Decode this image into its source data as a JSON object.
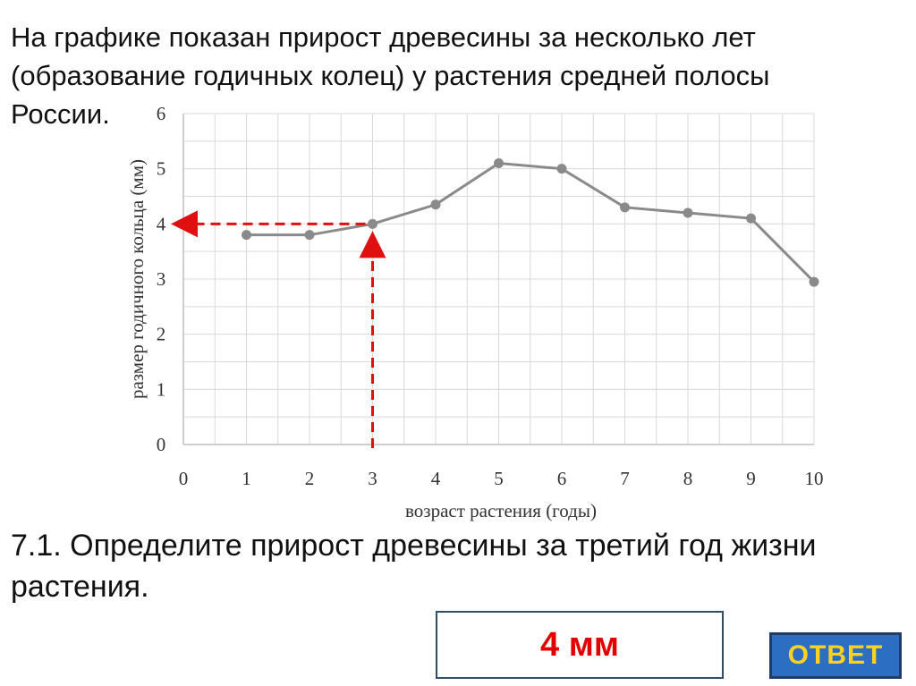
{
  "slide": {
    "intro_text": "На графике показан прирост древесины за несколько лет (образование годичных колец) у растения средней полосы России.",
    "question_text": "7.1. Определите прирост древесины за третий год жизни растения.",
    "answer_text": "4 мм",
    "answer_button_label": "ОТВЕТ"
  },
  "colors": {
    "line": "#8a8a8a",
    "marker": "#8a8a8a",
    "grid": "#d9d9d9",
    "axis": "#bfbfbf",
    "guide": "#e01010",
    "answer_text": "#e00000",
    "button_bg": "#2c6ec2",
    "button_text": "#ffd21f"
  },
  "chart_data": {
    "type": "line",
    "title": "",
    "xlabel": "возраст растения (годы)",
    "ylabel": "размер годичного кольца (мм)",
    "x_ticks": [
      "0",
      "1",
      "2",
      "3",
      "4",
      "5",
      "6",
      "7",
      "8",
      "9",
      "10"
    ],
    "y_ticks": [
      "0",
      "1",
      "2",
      "3",
      "4",
      "5",
      "6"
    ],
    "xlim": [
      0,
      10
    ],
    "ylim": [
      0,
      6
    ],
    "grid": true,
    "series": [
      {
        "x": [
          1,
          2,
          3,
          4,
          5,
          6,
          7,
          8,
          9,
          10
        ],
        "y": [
          3.8,
          3.8,
          4.0,
          4.35,
          5.1,
          5.0,
          4.3,
          4.2,
          4.1,
          2.95
        ]
      }
    ],
    "annotations": [
      {
        "type": "guide-arrow",
        "from_x": 3,
        "to_y": 4
      }
    ]
  }
}
